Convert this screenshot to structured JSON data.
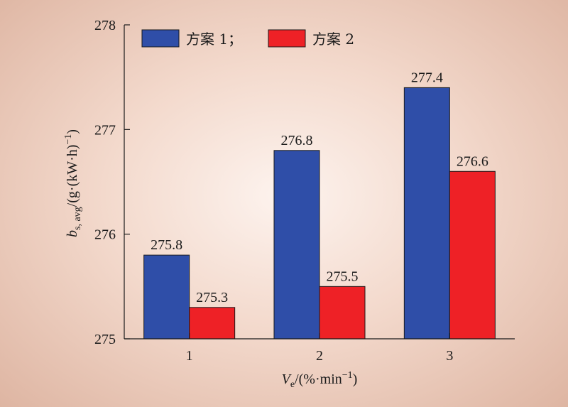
{
  "chart_data": {
    "type": "bar",
    "categories": [
      "1",
      "2",
      "3"
    ],
    "series": [
      {
        "name": "方案 1；",
        "color": "#2f4ea8",
        "values": [
          275.8,
          276.8,
          277.4
        ]
      },
      {
        "name": "方案 2",
        "color": "#ee2126",
        "values": [
          275.3,
          275.5,
          276.6
        ]
      }
    ],
    "data_labels": [
      [
        "275.8",
        "276.8",
        "277.4"
      ],
      [
        "275.3",
        "275.5",
        "276.6"
      ]
    ],
    "ylim": [
      275,
      278
    ],
    "yticks": [
      "275",
      "276",
      "277",
      "278"
    ],
    "xlabel": {
      "main": "V",
      "sub": "e",
      "rest": "/(%·min",
      "sup": "−1",
      "end": ")"
    },
    "ylabel": {
      "main": "b",
      "sub": "s, avg",
      "rest": "/(g·(kW·h)",
      "sup": "−1",
      "end": ")"
    },
    "legend_position": "top-left",
    "grid": false
  }
}
